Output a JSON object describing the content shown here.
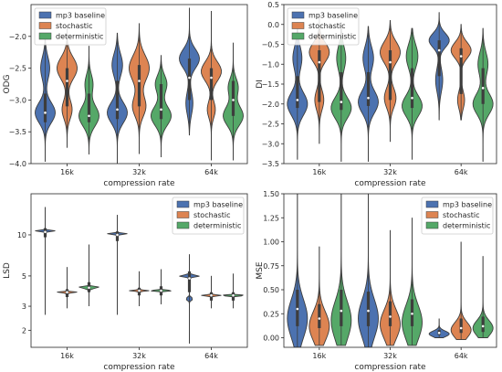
{
  "chart_data": [
    {
      "type": "violin",
      "xlabel": "compression rate",
      "ylabel": "ODG",
      "categories": [
        "16k",
        "32k",
        "64k"
      ],
      "ylim": [
        -4.0,
        -1.5
      ],
      "yticks": [
        -4.0,
        -3.5,
        -3.0,
        -2.5,
        -2.0
      ],
      "ytick_labels": [
        "−4.0",
        "−3.5",
        "−3.0",
        "−2.5",
        "−2.0"
      ],
      "log_scale": false,
      "legend_position": "upper-left",
      "series": [
        {
          "name": "mp3 baseline",
          "color": "#4c72b0",
          "violins": [
            {
              "ext": [
                -3.97,
                -2.05
              ],
              "q1": -3.35,
              "med": -3.2,
              "q3": -2.9,
              "modes": [
                [
                  -3.2,
                  1.0,
                  0.16
                ],
                [
                  -2.5,
                  0.45,
                  0.18
                ]
              ]
            },
            {
              "ext": [
                -4.0,
                -1.95
              ],
              "q1": -3.3,
              "med": -3.15,
              "q3": -2.7,
              "modes": [
                [
                  -3.2,
                  0.95,
                  0.16
                ],
                [
                  -2.45,
                  0.5,
                  0.18
                ]
              ]
            },
            {
              "ext": [
                -3.55,
                -1.55
              ],
              "q1": -3.0,
              "med": -2.65,
              "q3": -2.35,
              "modes": [
                [
                  -2.35,
                  1.0,
                  0.15
                ],
                [
                  -3.05,
                  0.35,
                  0.18
                ]
              ]
            }
          ]
        },
        {
          "name": "stochastic",
          "color": "#dd8452",
          "violins": [
            {
              "ext": [
                -3.75,
                -1.85
              ],
              "q1": -3.1,
              "med": -2.7,
              "q3": -2.5,
              "modes": [
                [
                  -2.5,
                  1.0,
                  0.17
                ],
                [
                  -3.15,
                  0.5,
                  0.15
                ]
              ]
            },
            {
              "ext": [
                -3.85,
                -1.8
              ],
              "q1": -3.1,
              "med": -2.7,
              "q3": -2.45,
              "modes": [
                [
                  -2.5,
                  0.9,
                  0.2
                ],
                [
                  -3.1,
                  0.6,
                  0.16
                ]
              ]
            },
            {
              "ext": [
                -3.95,
                -1.6
              ],
              "q1": -3.0,
              "med": -2.65,
              "q3": -2.5,
              "modes": [
                [
                  -2.55,
                  1.0,
                  0.15
                ],
                [
                  -3.15,
                  0.4,
                  0.13
                ]
              ]
            }
          ]
        },
        {
          "name": "deterministic",
          "color": "#55a868",
          "violins": [
            {
              "ext": [
                -3.85,
                -2.15
              ],
              "q1": -3.35,
              "med": -3.25,
              "q3": -2.9,
              "modes": [
                [
                  -3.25,
                  1.0,
                  0.16
                ],
                [
                  -2.75,
                  0.4,
                  0.15
                ]
              ]
            },
            {
              "ext": [
                -3.9,
                -2.3
              ],
              "q1": -3.3,
              "med": -3.15,
              "q3": -2.75,
              "modes": [
                [
                  -3.25,
                  0.95,
                  0.15
                ],
                [
                  -2.75,
                  0.55,
                  0.14
                ]
              ]
            },
            {
              "ext": [
                -3.95,
                -2.1
              ],
              "q1": -3.25,
              "med": -3.0,
              "q3": -2.7,
              "modes": [
                [
                  -3.25,
                  1.0,
                  0.15
                ],
                [
                  -2.8,
                  0.5,
                  0.14
                ]
              ]
            }
          ]
        }
      ]
    },
    {
      "type": "violin",
      "xlabel": "compression rate",
      "ylabel": "DI",
      "categories": [
        "16k",
        "32k",
        "64k"
      ],
      "ylim": [
        -3.5,
        0.5
      ],
      "yticks": [
        -3.5,
        -3.0,
        -2.5,
        -2.0,
        -1.5,
        -1.0,
        -0.5,
        0.0,
        0.5
      ],
      "ytick_labels": [
        "−3.5",
        "−3.0",
        "−2.5",
        "−2.0",
        "−1.5",
        "−1.0",
        "−0.5",
        "0.0",
        "0.5"
      ],
      "log_scale": false,
      "legend_position": "upper-left",
      "series": [
        {
          "name": "mp3 baseline",
          "color": "#4c72b0",
          "violins": [
            {
              "ext": [
                -3.4,
                0.05
              ],
              "q1": -2.1,
              "med": -1.9,
              "q3": -1.3,
              "modes": [
                [
                  -2.0,
                  1.0,
                  0.28
                ],
                [
                  -0.85,
                  0.45,
                  0.3
                ]
              ]
            },
            {
              "ext": [
                -3.45,
                -0.05
              ],
              "q1": -2.05,
              "med": -1.85,
              "q3": -1.2,
              "modes": [
                [
                  -1.95,
                  0.95,
                  0.28
                ],
                [
                  -0.85,
                  0.5,
                  0.3
                ]
              ]
            },
            {
              "ext": [
                -2.4,
                0.3
              ],
              "q1": -1.3,
              "med": -0.65,
              "q3": -0.4,
              "modes": [
                [
                  -0.4,
                  1.0,
                  0.18
                ],
                [
                  -1.4,
                  0.35,
                  0.3
                ]
              ]
            }
          ]
        },
        {
          "name": "stochastic",
          "color": "#dd8452",
          "violins": [
            {
              "ext": [
                -3.0,
                0.25
              ],
              "q1": -1.95,
              "med": -0.95,
              "q3": -0.65,
              "modes": [
                [
                  -0.7,
                  1.0,
                  0.24
                ],
                [
                  -1.9,
                  0.45,
                  0.25
                ]
              ]
            },
            {
              "ext": [
                -2.95,
                0.1
              ],
              "q1": -1.9,
              "med": -0.95,
              "q3": -0.65,
              "modes": [
                [
                  -0.7,
                  0.95,
                  0.26
                ],
                [
                  -1.85,
                  0.55,
                  0.25
                ]
              ]
            },
            {
              "ext": [
                -2.4,
                0.0
              ],
              "q1": -1.75,
              "med": -0.8,
              "q3": -0.6,
              "modes": [
                [
                  -0.65,
                  1.0,
                  0.2
                ],
                [
                  -1.9,
                  0.35,
                  0.22
                ]
              ]
            }
          ]
        },
        {
          "name": "deterministic",
          "color": "#55a868",
          "violins": [
            {
              "ext": [
                -3.45,
                0.05
              ],
              "q1": -2.15,
              "med": -1.95,
              "q3": -1.2,
              "modes": [
                [
                  -2.1,
                  1.0,
                  0.26
                ],
                [
                  -0.85,
                  0.45,
                  0.3
                ]
              ]
            },
            {
              "ext": [
                -3.4,
                -0.1
              ],
              "q1": -2.1,
              "med": -1.85,
              "q3": -1.1,
              "modes": [
                [
                  -2.05,
                  0.95,
                  0.26
                ],
                [
                  -0.8,
                  0.55,
                  0.3
                ]
              ]
            },
            {
              "ext": [
                -3.45,
                -0.1
              ],
              "q1": -2.0,
              "med": -1.6,
              "q3": -1.1,
              "modes": [
                [
                  -2.0,
                  1.0,
                  0.26
                ],
                [
                  -1.0,
                  0.5,
                  0.3
                ]
              ]
            }
          ]
        }
      ]
    },
    {
      "type": "violin",
      "xlabel": "compression rate",
      "ylabel": "LSD",
      "categories": [
        "16k",
        "32k",
        "64k"
      ],
      "ylim": [
        1.5,
        20
      ],
      "yticks": [
        2,
        3,
        5,
        10
      ],
      "ytick_labels": [
        "2",
        "3",
        "5",
        "10"
      ],
      "log_scale": true,
      "legend_position": "upper-right",
      "series": [
        {
          "name": "mp3 baseline",
          "color": "#4c72b0",
          "violins": [
            {
              "ext": [
                2.6,
                16.0
              ],
              "q1": 9.6,
              "med": 10.5,
              "q3": 11.2,
              "modes": [
                [
                  10.7,
                  1.0,
                  0.05
                ]
              ]
            },
            {
              "ext": [
                2.6,
                14.0
              ],
              "q1": 9.0,
              "med": 10.0,
              "q3": 10.6,
              "modes": [
                [
                  10.1,
                  1.0,
                  0.05
                ]
              ]
            },
            {
              "ext": [
                1.6,
                7.2
              ],
              "q1": 3.8,
              "med": 4.8,
              "q3": 5.4,
              "modes": [
                [
                  5.0,
                  1.0,
                  0.08
                ],
                [
                  3.4,
                  0.35,
                  0.08
                ]
              ]
            }
          ]
        },
        {
          "name": "stochastic",
          "color": "#dd8452",
          "violins": [
            {
              "ext": [
                2.9,
                5.8
              ],
              "q1": 3.5,
              "med": 3.8,
              "q3": 4.0,
              "modes": [
                [
                  3.8,
                  1.0,
                  0.035
                ]
              ]
            },
            {
              "ext": [
                3.0,
                5.4
              ],
              "q1": 3.6,
              "med": 3.9,
              "q3": 4.1,
              "modes": [
                [
                  3.9,
                  1.0,
                  0.035
                ]
              ]
            },
            {
              "ext": [
                2.9,
                5.0
              ],
              "q1": 3.3,
              "med": 3.6,
              "q3": 3.8,
              "modes": [
                [
                  3.6,
                  1.0,
                  0.035
                ]
              ]
            }
          ]
        },
        {
          "name": "deterministic",
          "color": "#55a868",
          "violins": [
            {
              "ext": [
                3.0,
                8.5
              ],
              "q1": 3.8,
              "med": 4.1,
              "q3": 4.5,
              "modes": [
                [
                  4.1,
                  1.0,
                  0.04
                ]
              ]
            },
            {
              "ext": [
                3.1,
                5.6
              ],
              "q1": 3.6,
              "med": 3.9,
              "q3": 4.2,
              "modes": [
                [
                  3.9,
                  1.0,
                  0.035
                ]
              ]
            },
            {
              "ext": [
                2.9,
                5.2
              ],
              "q1": 3.3,
              "med": 3.6,
              "q3": 3.8,
              "modes": [
                [
                  3.6,
                  1.0,
                  0.035
                ]
              ]
            }
          ]
        }
      ]
    },
    {
      "type": "violin",
      "xlabel": "compression rate",
      "ylabel": "MSE",
      "categories": [
        "16k",
        "32k",
        "64k"
      ],
      "ylim": [
        -0.1,
        1.5
      ],
      "yticks": [
        0.0,
        0.25,
        0.5,
        0.75,
        1.0,
        1.25,
        1.5
      ],
      "ytick_labels": [
        "0.00",
        "0.25",
        "0.50",
        "0.75",
        "1.00",
        "1.25",
        "1.50"
      ],
      "log_scale": false,
      "legend_position": "upper-right",
      "series": [
        {
          "name": "mp3 baseline",
          "color": "#4c72b0",
          "violins": [
            {
              "ext": [
                -0.1,
                1.5
              ],
              "q1": 0.12,
              "med": 0.3,
              "q3": 0.5,
              "modes": [
                [
                  0.2,
                  1.0,
                  0.2
                ]
              ]
            },
            {
              "ext": [
                -0.1,
                1.5
              ],
              "q1": 0.12,
              "med": 0.28,
              "q3": 0.48,
              "modes": [
                [
                  0.2,
                  1.0,
                  0.2
                ]
              ]
            },
            {
              "ext": [
                0.0,
                0.2
              ],
              "q1": 0.03,
              "med": 0.05,
              "q3": 0.08,
              "modes": [
                [
                  0.04,
                  1.0,
                  0.03
                ]
              ]
            }
          ]
        },
        {
          "name": "stochastic",
          "color": "#dd8452",
          "violins": [
            {
              "ext": [
                -0.08,
                0.95
              ],
              "q1": 0.1,
              "med": 0.2,
              "q3": 0.35,
              "modes": [
                [
                  0.12,
                  1.0,
                  0.15
                ]
              ]
            },
            {
              "ext": [
                -0.08,
                1.12
              ],
              "q1": 0.12,
              "med": 0.22,
              "q3": 0.38,
              "modes": [
                [
                  0.14,
                  1.0,
                  0.15
                ]
              ]
            },
            {
              "ext": [
                -0.02,
                1.0
              ],
              "q1": 0.05,
              "med": 0.1,
              "q3": 0.2,
              "modes": [
                [
                  0.08,
                  1.0,
                  0.08
                ]
              ]
            }
          ]
        },
        {
          "name": "deterministic",
          "color": "#55a868",
          "violins": [
            {
              "ext": [
                -0.08,
                1.5
              ],
              "q1": 0.12,
              "med": 0.28,
              "q3": 0.5,
              "modes": [
                [
                  0.18,
                  1.0,
                  0.2
                ]
              ]
            },
            {
              "ext": [
                -0.08,
                1.25
              ],
              "q1": 0.12,
              "med": 0.25,
              "q3": 0.4,
              "modes": [
                [
                  0.16,
                  1.0,
                  0.18
                ]
              ]
            },
            {
              "ext": [
                0.0,
                0.85
              ],
              "q1": 0.06,
              "med": 0.12,
              "q3": 0.22,
              "modes": [
                [
                  0.1,
                  1.0,
                  0.08
                ]
              ]
            }
          ]
        }
      ]
    }
  ]
}
